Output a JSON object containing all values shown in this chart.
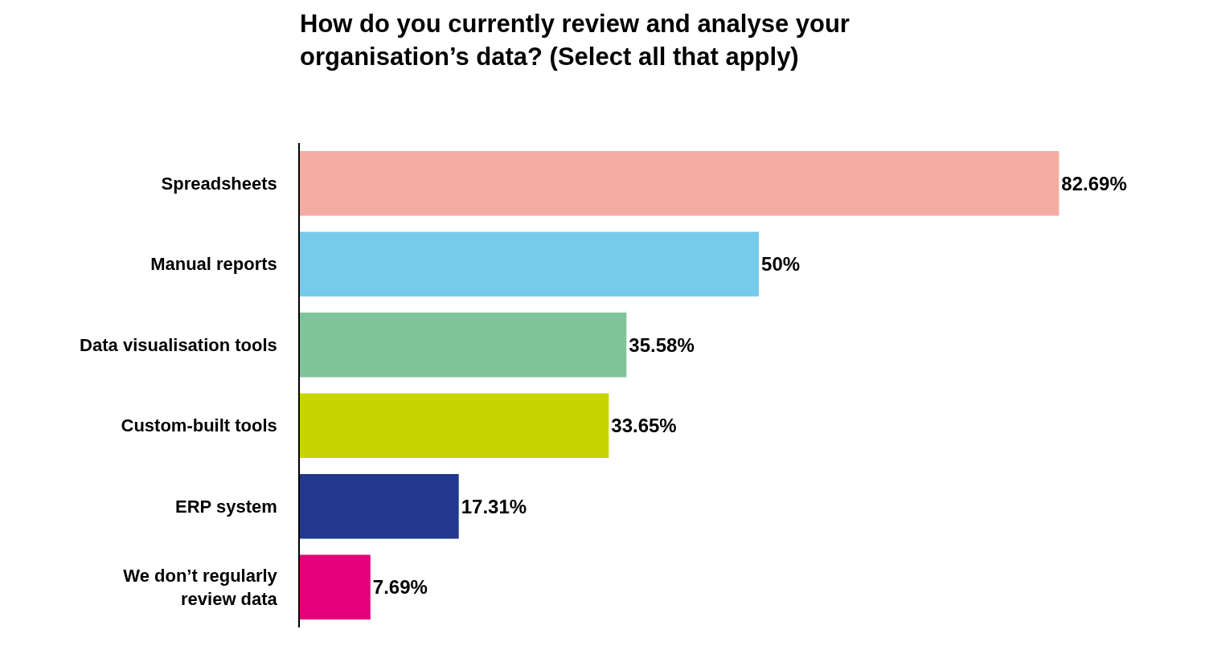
{
  "chart_data": {
    "type": "bar",
    "orientation": "horizontal",
    "title": "How do you currently review and analyse your organisation’s data? (Select all that apply)",
    "categories": [
      "Spreadsheets",
      "Manual reports",
      "Data visualisation tools",
      "Custom-built tools",
      "ERP system",
      "We don’t regularly review data"
    ],
    "values": [
      82.69,
      50,
      35.58,
      33.65,
      17.31,
      7.69
    ],
    "colors": [
      "#f4aca3",
      "#77cbea",
      "#80c59a",
      "#c8d400",
      "#21388e",
      "#e5007a"
    ],
    "value_labels": [
      "82.69%",
      "50%",
      "35.58%",
      "33.65%",
      "17.31%",
      "7.69%"
    ]
  }
}
